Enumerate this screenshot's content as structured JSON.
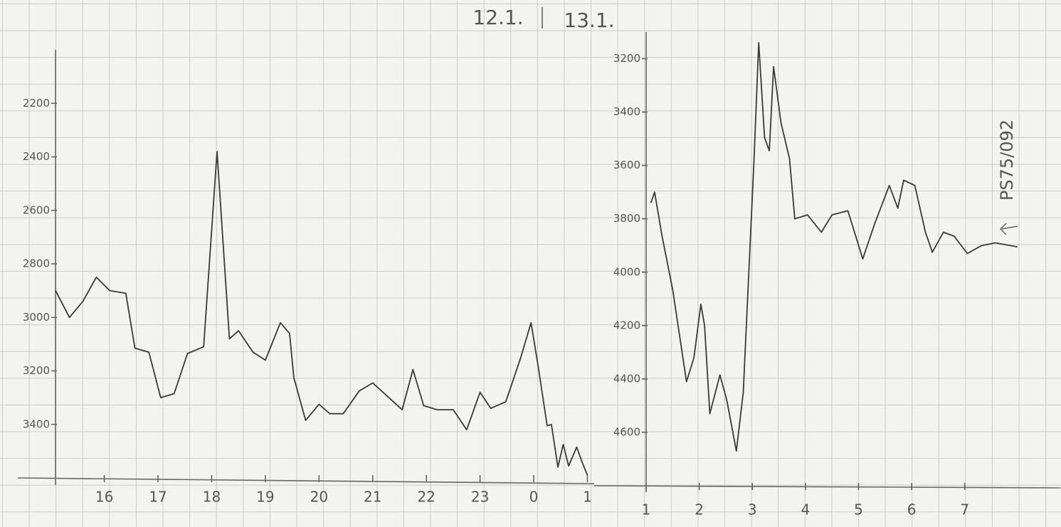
{
  "header": {
    "left": "12.1.",
    "right": "13.1."
  },
  "chart_data": [
    {
      "type": "line",
      "color": "#3a3a3a",
      "y_inverted": true,
      "grid": false,
      "xlim": [
        15.09,
        25.1
      ],
      "ylim": [
        2000,
        3600
      ],
      "xticks": [
        16,
        17,
        18,
        19,
        20,
        21,
        22,
        23,
        {
          "value": 24,
          "label": "0"
        },
        {
          "value": 25,
          "label": "1"
        }
      ],
      "yticks": [
        2200,
        2400,
        2600,
        2800,
        3000,
        3200,
        3400
      ],
      "x": [
        15.09,
        15.35,
        15.6,
        15.85,
        16.1,
        16.4,
        16.57,
        16.83,
        17.05,
        17.3,
        17.55,
        17.85,
        18.1,
        18.33,
        18.5,
        18.77,
        19.0,
        19.28,
        19.45,
        19.53,
        19.75,
        20.0,
        20.2,
        20.45,
        20.75,
        21.0,
        21.3,
        21.55,
        21.75,
        21.95,
        22.2,
        22.5,
        22.75,
        23.0,
        23.2,
        23.48,
        23.75,
        23.95,
        24.08,
        24.25,
        24.33,
        24.45,
        24.55,
        24.65,
        24.8,
        24.9,
        25.0
      ],
      "values": [
        2900,
        3000,
        2940,
        2850,
        2900,
        2910,
        3115,
        3130,
        3300,
        3285,
        3135,
        3110,
        2380,
        3080,
        3050,
        3130,
        3160,
        3020,
        3060,
        3225,
        3385,
        3325,
        3360,
        3360,
        3275,
        3245,
        3300,
        3345,
        3195,
        3330,
        3345,
        3345,
        3420,
        3280,
        3340,
        3315,
        3155,
        3020,
        3180,
        3405,
        3400,
        3560,
        3475,
        3555,
        3485,
        3540,
        3590
      ]
    },
    {
      "type": "line",
      "color": "#3a3a3a",
      "y_inverted": true,
      "grid": false,
      "annotation": "PS75/092",
      "xlim": [
        1,
        8.8
      ],
      "ylim": [
        3100,
        4800
      ],
      "xticks": [
        1,
        2,
        3,
        4,
        5,
        6,
        7
      ],
      "yticks": [
        3200,
        3400,
        3600,
        3800,
        4000,
        4200,
        4400,
        4600
      ],
      "x": [
        1.09,
        1.16,
        1.3,
        1.5,
        1.76,
        1.9,
        2.03,
        2.1,
        2.2,
        2.39,
        2.52,
        2.7,
        2.83,
        3.03,
        3.12,
        3.23,
        3.32,
        3.4,
        3.54,
        3.7,
        3.8,
        4.04,
        4.3,
        4.5,
        4.8,
        5.08,
        5.31,
        5.58,
        5.74,
        5.85,
        6.06,
        6.26,
        6.39,
        6.6,
        6.8,
        7.05,
        7.32,
        7.58,
        7.99
      ],
      "values": [
        3740,
        3700,
        3865,
        4065,
        4410,
        4320,
        4120,
        4200,
        4530,
        4385,
        4480,
        4670,
        4450,
        3585,
        3140,
        3495,
        3545,
        3230,
        3440,
        3575,
        3800,
        3785,
        3850,
        3785,
        3770,
        3950,
        3815,
        3675,
        3760,
        3655,
        3675,
        3850,
        3925,
        3850,
        3865,
        3930,
        3900,
        3890,
        3905
      ]
    }
  ]
}
